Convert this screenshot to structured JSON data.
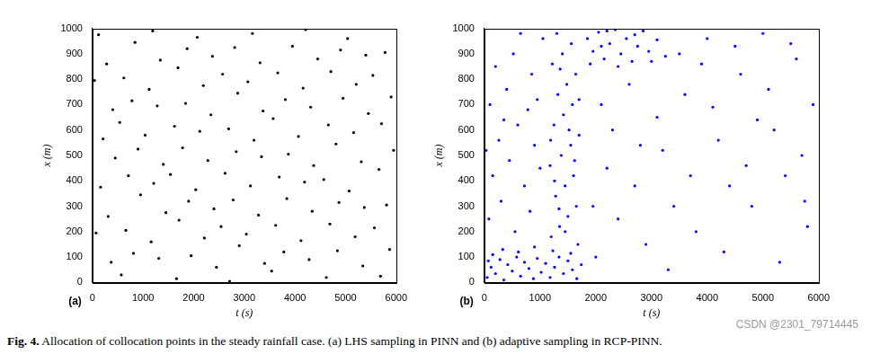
{
  "caption_label": "Fig. 4.",
  "caption": "Allocation of collocation points in the steady rainfall case. (a) LHS sampling in PINN and (b) adaptive sampling in RCP-PINN.",
  "watermark": "CSDN @2301_79714445",
  "chart_data": [
    {
      "type": "scatter",
      "panel_label": "(a)",
      "x_label": "t (s)",
      "y_label": "x (m)",
      "color": "#000000",
      "marker": "circle",
      "grid": false,
      "xlim": [
        0,
        6000
      ],
      "ylim": [
        0,
        1000
      ],
      "xticks": [
        0,
        1000,
        2000,
        3000,
        4000,
        5000,
        6000
      ],
      "yticks": [
        0,
        100,
        200,
        300,
        400,
        500,
        600,
        700,
        800,
        900,
        1000
      ],
      "x": [
        370,
        570,
        1310,
        1660,
        2450,
        2710,
        3400,
        3540,
        4280,
        4620,
        5340,
        5690,
        70,
        810,
        1160,
        1950,
        2210,
        2900,
        3040,
        3780,
        4120,
        4840,
        5190,
        5870,
        310,
        660,
        1450,
        1710,
        2400,
        2540,
        3280,
        3620,
        4340,
        4690,
        5370,
        5570,
        160,
        950,
        1210,
        1900,
        2040,
        2780,
        3120,
        3840,
        4190,
        4870,
        5070,
        5810,
        450,
        710,
        1400,
        1540,
        2280,
        2620,
        3340,
        3690,
        4370,
        4570,
        5310,
        5660,
        210,
        900,
        1040,
        1780,
        2120,
        2840,
        3190,
        3870,
        4070,
        4810,
        5160,
        5950,
        400,
        540,
        1280,
        1620,
        2340,
        2690,
        3370,
        3570,
        4310,
        4660,
        5450,
        5710,
        40,
        780,
        1120,
        1840,
        2190,
        2870,
        3070,
        3810,
        4160,
        4950,
        5210,
        5900,
        280,
        620,
        1340,
        1690,
        2370,
        2570,
        3310,
        3660,
        4450,
        4710,
        5400,
        5540,
        120,
        840,
        1190,
        1870,
        2070,
        2810,
        3160,
        3950,
        4210,
        4900,
        5040,
        5780
      ],
      "values": [
        80,
        30,
        95,
        15,
        60,
        5,
        75,
        45,
        90,
        20,
        65,
        25,
        195,
        115,
        160,
        105,
        175,
        145,
        190,
        120,
        165,
        125,
        180,
        130,
        260,
        205,
        275,
        245,
        290,
        220,
        265,
        225,
        280,
        230,
        295,
        215,
        375,
        345,
        390,
        320,
        365,
        325,
        380,
        330,
        395,
        315,
        360,
        305,
        490,
        420,
        465,
        425,
        480,
        430,
        495,
        415,
        460,
        405,
        475,
        445,
        565,
        525,
        580,
        530,
        595,
        515,
        560,
        505,
        575,
        545,
        590,
        520,
        680,
        630,
        695,
        615,
        660,
        605,
        675,
        645,
        690,
        620,
        665,
        625,
        795,
        715,
        760,
        705,
        775,
        745,
        790,
        720,
        765,
        725,
        780,
        730,
        860,
        805,
        875,
        845,
        890,
        820,
        865,
        825,
        880,
        830,
        895,
        815,
        975,
        945,
        990,
        920,
        965,
        925,
        980,
        930,
        995,
        915,
        960,
        905
      ]
    },
    {
      "type": "scatter",
      "panel_label": "(b)",
      "x_label": "t (s)",
      "y_label": "x (m)",
      "color": "#0000ff",
      "marker": "circle",
      "grid": false,
      "xlim": [
        0,
        6000
      ],
      "ylim": [
        0,
        1000
      ],
      "xticks": [
        0,
        1000,
        2000,
        3000,
        4000,
        5000,
        6000
      ],
      "yticks": [
        0,
        100,
        200,
        300,
        400,
        500,
        600,
        700,
        800,
        900,
        1000
      ],
      "x": [
        50,
        120,
        200,
        280,
        350,
        420,
        500,
        580,
        650,
        720,
        800,
        880,
        950,
        1020,
        1100,
        1180,
        1260,
        1340,
        1420,
        1500,
        1580,
        1660,
        1740,
        150,
        330,
        610,
        900,
        1230,
        1550,
        70,
        1200,
        1350,
        1500,
        1650,
        1280,
        1450,
        1600,
        1180,
        1380,
        1550,
        1700,
        1250,
        1420,
        1580,
        1320,
        1480,
        1640,
        1220,
        1400,
        1560,
        1300,
        1680,
        1260,
        1520,
        1360,
        1700,
        1450,
        1190,
        1620,
        1340,
        1850,
        1950,
        2050,
        2150,
        2250,
        2350,
        2450,
        2550,
        2650,
        2750,
        2850,
        2950,
        3100,
        3250,
        1900,
        2100,
        2400,
        2700,
        3000,
        2200,
        80,
        300,
        550,
        820,
        150,
        450,
        720,
        1000,
        260,
        600,
        900,
        100,
        400,
        780,
        200,
        520,
        850,
        1050,
        650,
        350,
        950,
        30,
        2000,
        2400,
        2900,
        3300,
        3800,
        4300,
        4800,
        5300,
        5800,
        2200,
        2700,
        3200,
        3700,
        4200,
        4700,
        5200,
        5700,
        2100,
        2600,
        3100,
        3600,
        4100,
        4600,
        5100,
        5600,
        3500,
        4000,
        4500,
        5000,
        5500,
        5900,
        1950,
        2300,
        3400,
        4400,
        5400,
        2800,
        3900,
        4900,
        5750
      ],
      "values": [
        20,
        60,
        35,
        90,
        10,
        70,
        45,
        100,
        25,
        80,
        55,
        15,
        95,
        40,
        75,
        20,
        60,
        100,
        35,
        85,
        50,
        15,
        70,
        110,
        130,
        120,
        140,
        125,
        115,
        85,
        180,
        220,
        260,
        300,
        340,
        380,
        420,
        460,
        500,
        540,
        580,
        620,
        660,
        700,
        740,
        780,
        820,
        860,
        900,
        940,
        980,
        150,
        400,
        600,
        840,
        720,
        200,
        560,
        480,
        290,
        960,
        910,
        985,
        880,
        940,
        995,
        900,
        960,
        870,
        930,
        990,
        910,
        955,
        890,
        860,
        930,
        850,
        975,
        870,
        990,
        250,
        320,
        200,
        280,
        420,
        480,
        380,
        450,
        560,
        620,
        540,
        700,
        760,
        680,
        850,
        900,
        820,
        960,
        980,
        640,
        720,
        520,
        100,
        250,
        150,
        50,
        200,
        120,
        300,
        80,
        220,
        450,
        380,
        520,
        420,
        560,
        460,
        600,
        500,
        700,
        780,
        650,
        740,
        690,
        820,
        760,
        880,
        900,
        960,
        930,
        980,
        940,
        700,
        300,
        600,
        300,
        380,
        420,
        540,
        860,
        640,
        320
      ]
    }
  ]
}
